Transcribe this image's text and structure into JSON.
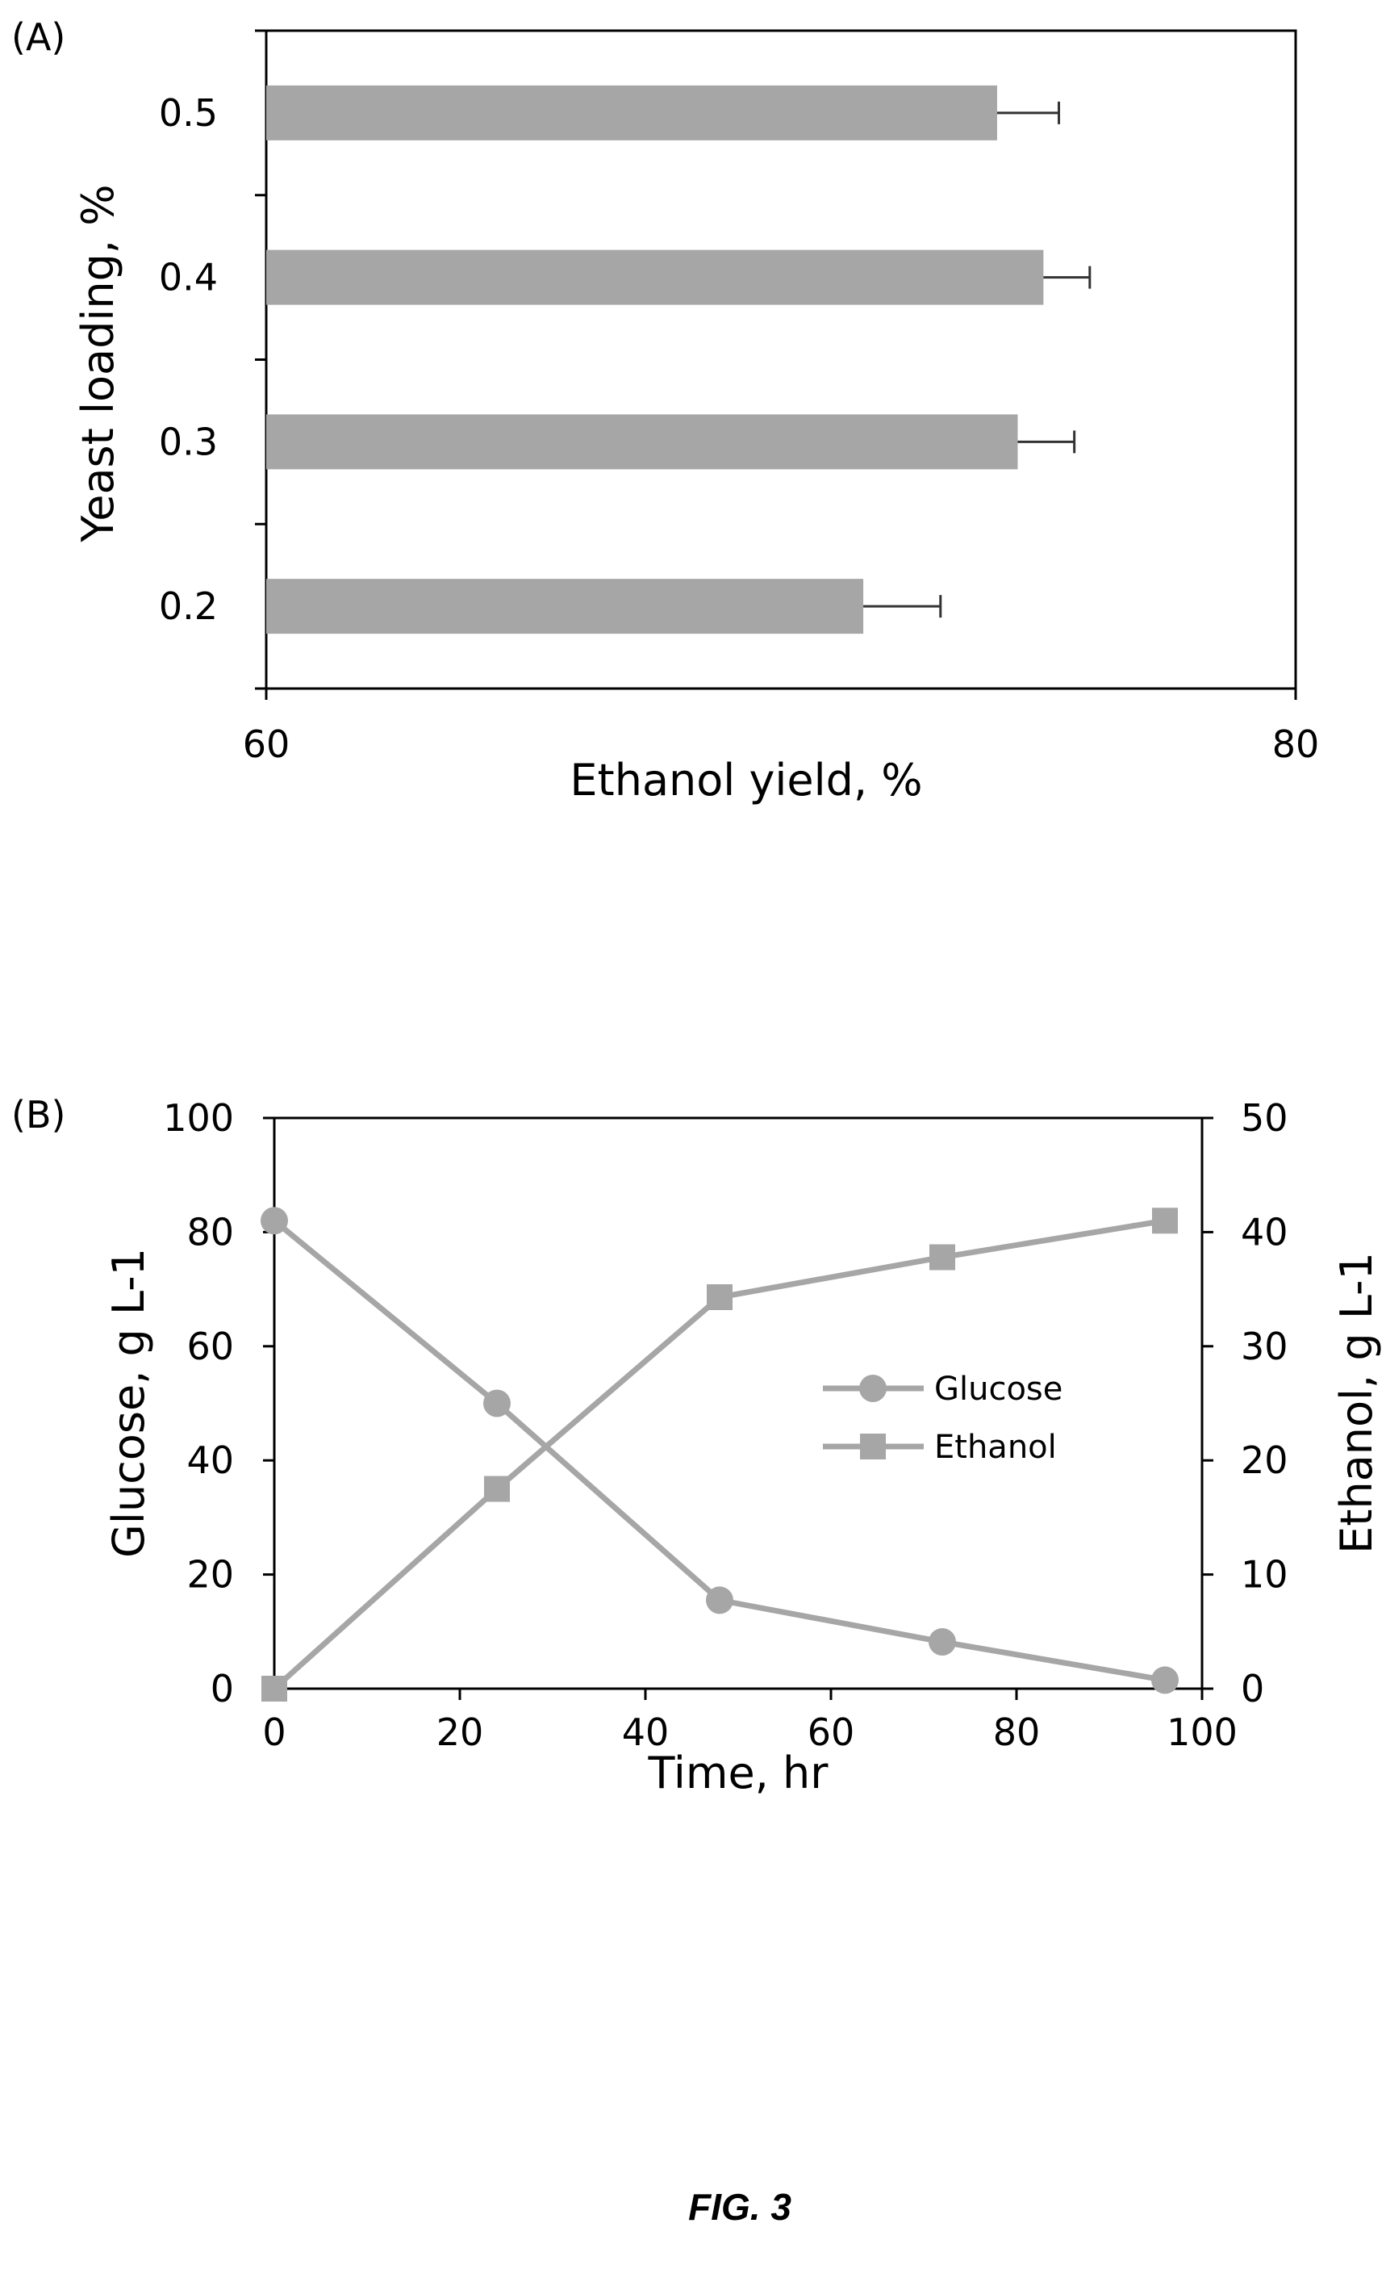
{
  "figure_label": "FIG. 3",
  "chart_data": [
    {
      "type": "bar",
      "panel_label": "(A)",
      "orientation": "horizontal",
      "categories": [
        "0.5",
        "0.4",
        "0.3",
        "0.2"
      ],
      "values": [
        74.2,
        75.1,
        74.6,
        71.6
      ],
      "errors": [
        1.2,
        0.9,
        1.1,
        1.5
      ],
      "xlabel": "Ethanol yield, %",
      "ylabel": "Yeast loading, %",
      "xlim": [
        60,
        80
      ],
      "xticks": [
        "60",
        "80"
      ],
      "bar_color": "#a6a6a6",
      "grid": false
    },
    {
      "type": "line",
      "panel_label": "(B)",
      "x": [
        0,
        24,
        48,
        72,
        96
      ],
      "xticks": [
        "0",
        "20",
        "40",
        "60",
        "80",
        "100"
      ],
      "xlim": [
        0,
        100
      ],
      "xlabel": "Time, hr",
      "ylabel": "Glucose, g L-1",
      "ylim": [
        0,
        100
      ],
      "yticks": [
        "0",
        "20",
        "40",
        "60",
        "80",
        "100"
      ],
      "y2label": "Ethanol, g L-1",
      "y2lim": [
        0,
        50
      ],
      "y2ticks": [
        "0",
        "10",
        "20",
        "30",
        "40",
        "50"
      ],
      "legend_position": "center-right",
      "grid": false,
      "series": [
        {
          "name": "Glucose",
          "axis": "left",
          "marker": "circle",
          "color": "#a6a6a6",
          "values": [
            82,
            50,
            15.5,
            8.2,
            1.5
          ]
        },
        {
          "name": "Ethanol",
          "axis": "right",
          "marker": "square",
          "color": "#a6a6a6",
          "values": [
            0,
            17.5,
            34.3,
            37.8,
            41
          ]
        }
      ]
    }
  ]
}
